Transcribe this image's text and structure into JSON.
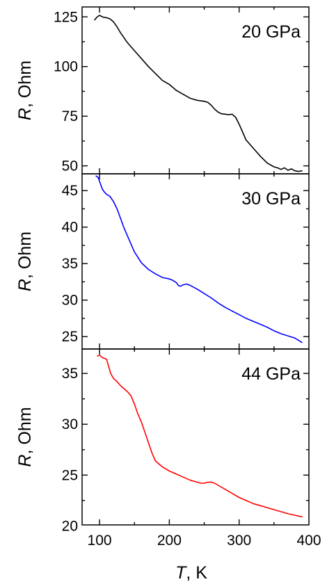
{
  "chart_data": {
    "type": "line",
    "shared_x": {
      "label_symbol": "T",
      "label_unit": ", K",
      "range": [
        75,
        400
      ],
      "ticks": [
        100,
        200,
        300,
        400
      ],
      "tick_labels": [
        "100",
        "200",
        "300",
        "400"
      ],
      "minor_step": 50
    },
    "panels": [
      {
        "label": "20 GPa",
        "color": "#000000",
        "ylabel_symbol": "R",
        "ylabel_unit": ", Ohm",
        "ylim": [
          46,
          130
        ],
        "yticks": [
          50,
          75,
          100,
          125
        ],
        "ytick_labels": [
          "50",
          "75",
          "100",
          "125"
        ],
        "y_minor_step": 12.5,
        "x": [
          93,
          96,
          100,
          103,
          106,
          110,
          115,
          120,
          125,
          130,
          140,
          150,
          160,
          170,
          180,
          190,
          200,
          210,
          220,
          230,
          240,
          250,
          255,
          260,
          265,
          270,
          275,
          280,
          285,
          290,
          295,
          300,
          305,
          310,
          320,
          330,
          340,
          350,
          355,
          360,
          365,
          370,
          375,
          380,
          385,
          390
        ],
        "y": [
          123.5,
          124.8,
          125.8,
          125.2,
          124.8,
          124.6,
          124,
          122.5,
          120,
          117,
          112,
          108,
          104,
          100,
          96.5,
          93,
          91,
          88,
          86,
          84,
          83,
          82.5,
          82,
          80.5,
          78.5,
          77,
          76.2,
          76,
          75.8,
          76,
          74.5,
          71,
          67,
          63,
          59,
          55,
          51.5,
          49.5,
          49,
          48.2,
          49,
          47.8,
          48.5,
          47.5,
          47.2,
          47.5
        ]
      },
      {
        "label": "30 GPa",
        "color": "#0000ff",
        "ylabel_symbol": "R",
        "ylabel_unit": ", Ohm",
        "ylim": [
          23.3,
          47.3
        ],
        "yticks": [
          25,
          30,
          35,
          40,
          45
        ],
        "ytick_labels": [
          "25",
          "30",
          "35",
          "40",
          "45"
        ],
        "y_minor_step": 2.5,
        "x": [
          95,
          98,
          101,
          104,
          107,
          110,
          115,
          120,
          125,
          130,
          135,
          140,
          145,
          150,
          160,
          170,
          180,
          190,
          200,
          205,
          210,
          213,
          216,
          220,
          225,
          230,
          240,
          250,
          260,
          270,
          280,
          290,
          300,
          310,
          320,
          330,
          340,
          350,
          360,
          370,
          380,
          390
        ],
        "y": [
          47,
          46.8,
          46,
          45.2,
          44.8,
          44.5,
          44.2,
          43.5,
          42.5,
          41.2,
          39.9,
          38.8,
          37.7,
          36.6,
          35.1,
          34.2,
          33.6,
          33.1,
          32.9,
          32.7,
          32.4,
          32,
          31.9,
          32.1,
          32.2,
          32,
          31.5,
          30.9,
          30.3,
          29.6,
          29,
          28.5,
          28,
          27.5,
          27.1,
          26.7,
          26.3,
          25.8,
          25.4,
          25.1,
          24.8,
          24.2
        ]
      },
      {
        "label": "44 GPa",
        "color": "#ff0000",
        "ylabel_symbol": "R",
        "ylabel_unit": ", Ohm",
        "ylim": [
          20.1,
          37.4
        ],
        "yticks": [
          20,
          25,
          30,
          35
        ],
        "ytick_labels": [
          "20",
          "25",
          "30",
          "35"
        ],
        "y_minor_step": 2.5,
        "x": [
          97,
          100,
          103,
          106,
          110,
          113,
          116,
          120,
          125,
          130,
          135,
          140,
          145,
          150,
          155,
          160,
          165,
          170,
          175,
          180,
          190,
          200,
          210,
          220,
          230,
          240,
          245,
          250,
          255,
          260,
          265,
          270,
          280,
          290,
          300,
          310,
          320,
          330,
          340,
          350,
          360,
          370,
          380,
          390
        ],
        "y": [
          36.7,
          36.8,
          36.6,
          36.5,
          36.4,
          35.7,
          35,
          34.5,
          34.2,
          33.8,
          33.5,
          33.2,
          32.8,
          32,
          31,
          30.2,
          29.2,
          28.2,
          27.2,
          26.4,
          25.8,
          25.4,
          25.1,
          24.8,
          24.5,
          24.3,
          24.2,
          24.2,
          24.3,
          24.3,
          24.2,
          24,
          23.6,
          23.2,
          22.8,
          22.5,
          22.2,
          22,
          21.8,
          21.6,
          21.4,
          21.2,
          21.05,
          20.9
        ]
      }
    ]
  }
}
